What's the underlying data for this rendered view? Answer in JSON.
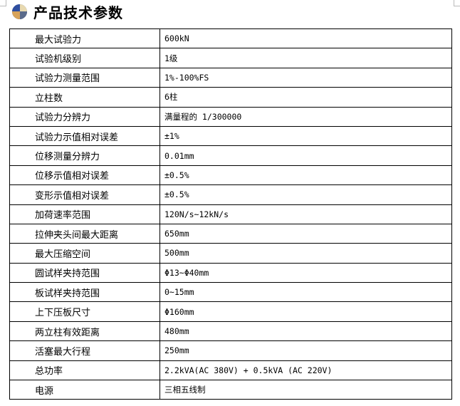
{
  "title": "产品技术参数",
  "title_icon": "colored-disc-icon",
  "specs": [
    {
      "name": "最大试验力",
      "value": "600kN"
    },
    {
      "name": "试验机级别",
      "value": "1级"
    },
    {
      "name": "试验力测量范围",
      "value": "1%-100%FS"
    },
    {
      "name": "立柱数",
      "value": "6柱"
    },
    {
      "name": "试验力分辨力",
      "value": "满量程的 1/300000"
    },
    {
      "name": "试验力示值相对误差",
      "value": "±1%"
    },
    {
      "name": "位移测量分辨力",
      "value": "0.01mm"
    },
    {
      "name": "位移示值相对误差",
      "value": "±0.5%"
    },
    {
      "name": "变形示值相对误差",
      "value": "±0.5%"
    },
    {
      "name": "加荷速率范围",
      "value": "120N/s~12kN/s"
    },
    {
      "name": "拉伸夹头间最大距离",
      "value": "650mm"
    },
    {
      "name": "最大压缩空间",
      "value": "500mm"
    },
    {
      "name": "圆试样夹持范围",
      "value": "Φ13~Φ40mm"
    },
    {
      "name": "板试样夹持范围",
      "value": "0~15mm"
    },
    {
      "name": "上下压板尺寸",
      "value": "Φ160mm"
    },
    {
      "name": "两立柱有效距离",
      "value": "480mm"
    },
    {
      "name": "活塞最大行程",
      "value": "250mm"
    },
    {
      "name": "总功率",
      "value": "2.2kVA(AC 380V) + 0.5kVA (AC 220V)"
    },
    {
      "name": "电源",
      "value": "三相五线制"
    }
  ]
}
